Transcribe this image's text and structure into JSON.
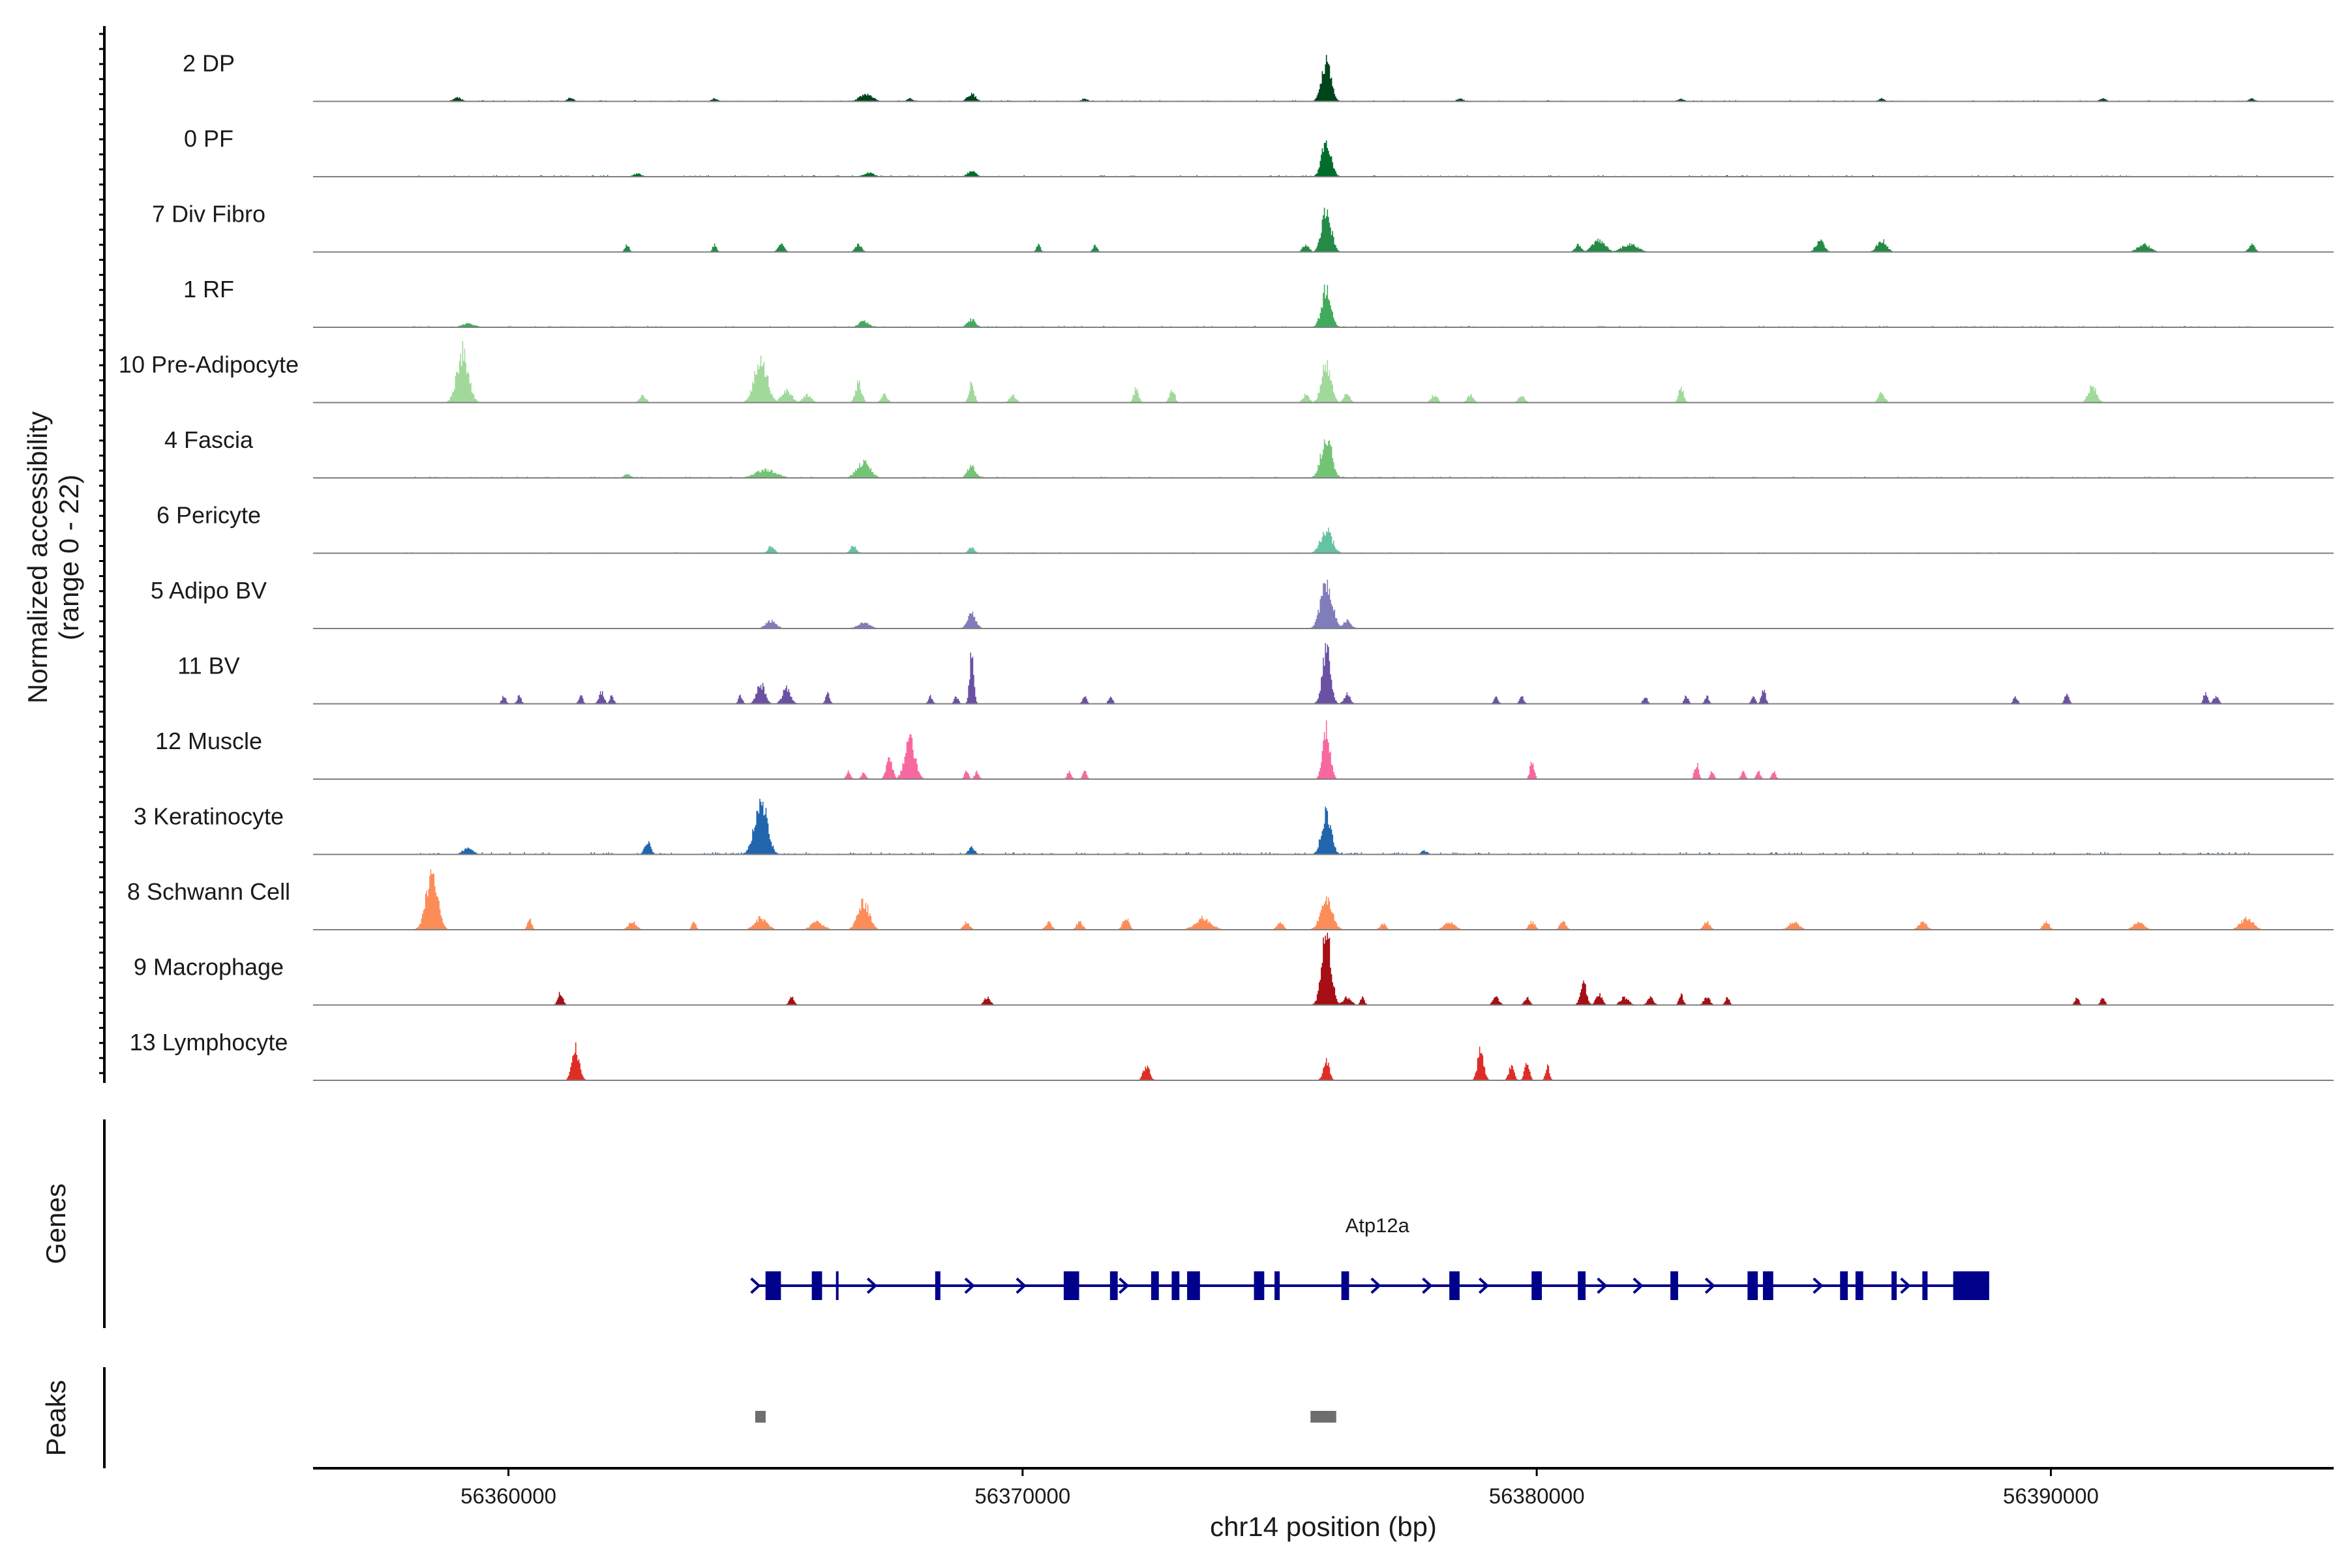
{
  "chart_data": {
    "type": "coverage-track",
    "ylabel_line1": "Normalized accessibility",
    "ylabel_line2": "(range 0 - 22)",
    "y_range": [
      0,
      22
    ],
    "xlabel": "chr14 position (bp)",
    "x_range": [
      56356200,
      56395500
    ],
    "x_ticks": [
      56360000,
      56370000,
      56380000,
      56390000
    ],
    "x_tick_labels": [
      "56360000",
      "56370000",
      "56380000",
      "56390000"
    ],
    "tracks": [
      {
        "name": "2 DP",
        "color": "#00441b",
        "peaks": [
          [
            56375900,
            20,
            90
          ],
          [
            56366950,
            4,
            120
          ],
          [
            56369000,
            4,
            80
          ],
          [
            56359000,
            2,
            80
          ],
          [
            56361200,
            2,
            60
          ],
          [
            56364000,
            1.5,
            60
          ],
          [
            56367800,
            1.5,
            60
          ],
          [
            56371200,
            1.5,
            60
          ],
          [
            56378500,
            1.5,
            60
          ],
          [
            56382800,
            1.5,
            60
          ],
          [
            56386700,
            1.5,
            60
          ],
          [
            56391000,
            1.5,
            60
          ],
          [
            56393900,
            1.5,
            60
          ]
        ],
        "noise": 0.6,
        "noise_from": 56359000,
        "noise_to": 56394000
      },
      {
        "name": "0 PF",
        "color": "#006d2c",
        "peaks": [
          [
            56375900,
            18,
            90
          ],
          [
            56369000,
            3,
            80
          ],
          [
            56367000,
            2,
            100
          ],
          [
            56362500,
            1.5,
            80
          ]
        ],
        "noise": 0.8,
        "noise_from": 56358000,
        "noise_to": 56394000
      },
      {
        "name": "7 Div Fibro",
        "color": "#238b45",
        "peaks": [
          [
            56375900,
            22,
            90
          ],
          [
            56362300,
            4,
            40
          ],
          [
            56364000,
            4,
            40
          ],
          [
            56366800,
            4,
            60
          ],
          [
            56370300,
            4,
            40
          ],
          [
            56371400,
            4,
            40
          ],
          [
            56375500,
            4,
            60
          ],
          [
            56381200,
            6,
            120
          ],
          [
            56381800,
            4,
            150
          ],
          [
            56385500,
            6,
            80
          ],
          [
            56386700,
            6,
            90
          ],
          [
            56391800,
            4,
            120
          ],
          [
            56393900,
            4,
            60
          ],
          [
            56380800,
            4,
            60
          ],
          [
            56365300,
            4,
            60
          ]
        ],
        "noise": 0,
        "noise_from": 56362000,
        "noise_to": 56394000
      },
      {
        "name": "1 RF",
        "color": "#41ab5d",
        "peaks": [
          [
            56375900,
            20,
            90
          ],
          [
            56369000,
            4,
            80
          ],
          [
            56366900,
            3,
            100
          ],
          [
            56359200,
            2,
            120
          ]
        ],
        "noise": 0.8,
        "noise_from": 56358000,
        "noise_to": 56394000
      },
      {
        "name": "10 Pre-Adipocyte",
        "color": "#a1d99b",
        "peaks": [
          [
            56359100,
            26,
            110
          ],
          [
            56364900,
            22,
            120
          ],
          [
            56365400,
            6,
            100
          ],
          [
            56366800,
            10,
            60
          ],
          [
            56369000,
            10,
            50
          ],
          [
            56372200,
            7,
            50
          ],
          [
            56372900,
            7,
            50
          ],
          [
            56375900,
            20,
            90
          ],
          [
            56376300,
            5,
            60
          ],
          [
            56378000,
            4,
            60
          ],
          [
            56378700,
            4,
            60
          ],
          [
            56382800,
            8,
            50
          ],
          [
            56386700,
            5,
            60
          ],
          [
            56390800,
            9,
            80
          ],
          [
            56362600,
            4,
            60
          ],
          [
            56365800,
            4,
            80
          ],
          [
            56367300,
            4,
            60
          ],
          [
            56375500,
            4,
            60
          ],
          [
            56379700,
            4,
            60
          ],
          [
            56369800,
            4,
            60
          ]
        ],
        "noise": 0,
        "noise_from": 56359000,
        "noise_to": 56391000
      },
      {
        "name": "4 Fascia",
        "color": "#74c476",
        "peaks": [
          [
            56375900,
            22,
            100
          ],
          [
            56366900,
            8,
            130
          ],
          [
            56369000,
            6,
            80
          ],
          [
            56365000,
            4,
            200
          ],
          [
            56362300,
            2,
            60
          ]
        ],
        "noise": 0.8,
        "noise_from": 56358000,
        "noise_to": 56394000
      },
      {
        "name": "6 Pericyte",
        "color": "#66c2a4",
        "peaks": [
          [
            56375900,
            12,
            110
          ],
          [
            56365100,
            4,
            60
          ],
          [
            56366700,
            4,
            60
          ],
          [
            56369000,
            3,
            60
          ]
        ],
        "noise": 0.5,
        "noise_from": 56358000,
        "noise_to": 56394000
      },
      {
        "name": "5 Adipo BV",
        "color": "#807dba",
        "peaks": [
          [
            56375900,
            24,
            110
          ],
          [
            56369000,
            8,
            80
          ],
          [
            56365100,
            4,
            100
          ],
          [
            56366900,
            3,
            120
          ],
          [
            56376300,
            4,
            80
          ]
        ],
        "noise": 0,
        "noise_from": 56358500,
        "noise_to": 56393500
      },
      {
        "name": "11 BV",
        "color": "#6a51a3",
        "peaks": [
          [
            56375900,
            28,
            80
          ],
          [
            56369000,
            26,
            40
          ],
          [
            56364900,
            10,
            80
          ],
          [
            56365400,
            8,
            80
          ],
          [
            56359900,
            4,
            40
          ],
          [
            56360200,
            4,
            40
          ],
          [
            56361400,
            4,
            40
          ],
          [
            56361800,
            6,
            50
          ],
          [
            56362000,
            4,
            40
          ],
          [
            56364500,
            4,
            40
          ],
          [
            56366200,
            6,
            40
          ],
          [
            56368200,
            4,
            40
          ],
          [
            56368700,
            4,
            40
          ],
          [
            56371200,
            4,
            40
          ],
          [
            56371700,
            4,
            40
          ],
          [
            56376300,
            5,
            60
          ],
          [
            56379200,
            4,
            40
          ],
          [
            56379700,
            4,
            40
          ],
          [
            56382100,
            4,
            40
          ],
          [
            56382900,
            4,
            40
          ],
          [
            56383300,
            4,
            40
          ],
          [
            56384400,
            8,
            40
          ],
          [
            56384200,
            4,
            40
          ],
          [
            56389300,
            4,
            40
          ],
          [
            56390300,
            6,
            40
          ],
          [
            56393200,
            4,
            50
          ],
          [
            56393000,
            6,
            40
          ]
        ],
        "noise": 0,
        "noise_from": 56358500,
        "noise_to": 56393500
      },
      {
        "name": "12 Muscle",
        "color": "#f768a1",
        "peaks": [
          [
            56375900,
            26,
            70
          ],
          [
            56367800,
            20,
            100
          ],
          [
            56367400,
            10,
            60
          ],
          [
            56366600,
            4,
            40
          ],
          [
            56366900,
            4,
            40
          ],
          [
            56367900,
            6,
            60
          ],
          [
            56368900,
            4,
            40
          ],
          [
            56369100,
            4,
            40
          ],
          [
            56370900,
            4,
            40
          ],
          [
            56371200,
            4,
            40
          ],
          [
            56379900,
            10,
            40
          ],
          [
            56383100,
            8,
            40
          ],
          [
            56383400,
            4,
            40
          ],
          [
            56384000,
            4,
            40
          ],
          [
            56384300,
            4,
            40
          ],
          [
            56384600,
            4,
            40
          ]
        ],
        "noise": 0,
        "noise_from": 56366000,
        "noise_to": 56385000
      },
      {
        "name": "3 Keratinocyte",
        "color": "#2166ac",
        "peaks": [
          [
            56364900,
            28,
            120
          ],
          [
            56375900,
            22,
            90
          ],
          [
            56362700,
            6,
            60
          ],
          [
            56369000,
            4,
            60
          ],
          [
            56359200,
            3,
            100
          ],
          [
            56377800,
            2,
            60
          ]
        ],
        "noise": 1.2,
        "noise_from": 56358000,
        "noise_to": 56394000
      },
      {
        "name": "8 Schwann Cell",
        "color": "#fc8d59",
        "peaks": [
          [
            56358500,
            28,
            110
          ],
          [
            56360400,
            6,
            40
          ],
          [
            56362400,
            4,
            80
          ],
          [
            56363600,
            4,
            40
          ],
          [
            56364900,
            6,
            120
          ],
          [
            56366000,
            4,
            120
          ],
          [
            56366900,
            14,
            110
          ],
          [
            56368900,
            4,
            60
          ],
          [
            56370500,
            4,
            60
          ],
          [
            56371100,
            4,
            60
          ],
          [
            56372000,
            6,
            60
          ],
          [
            56373500,
            6,
            150
          ],
          [
            56375000,
            4,
            60
          ],
          [
            56375900,
            16,
            110
          ],
          [
            56377000,
            3,
            60
          ],
          [
            56378300,
            4,
            100
          ],
          [
            56379900,
            4,
            60
          ],
          [
            56380500,
            4,
            60
          ],
          [
            56383300,
            4,
            60
          ],
          [
            56385000,
            4,
            100
          ],
          [
            56387500,
            4,
            80
          ],
          [
            56389900,
            4,
            60
          ],
          [
            56391700,
            4,
            100
          ],
          [
            56393800,
            6,
            120
          ]
        ],
        "noise": 0,
        "noise_from": 56358000,
        "noise_to": 56394000
      },
      {
        "name": "9 Macrophage",
        "color": "#a50f15",
        "peaks": [
          [
            56375900,
            36,
            90
          ],
          [
            56376300,
            4,
            80
          ],
          [
            56376600,
            4,
            40
          ],
          [
            56361000,
            6,
            50
          ],
          [
            56365500,
            4,
            50
          ],
          [
            56369300,
            4,
            60
          ],
          [
            56379200,
            4,
            60
          ],
          [
            56379800,
            4,
            50
          ],
          [
            56380900,
            12,
            60
          ],
          [
            56381200,
            6,
            60
          ],
          [
            56381700,
            4,
            80
          ],
          [
            56382200,
            4,
            60
          ],
          [
            56382800,
            6,
            40
          ],
          [
            56383300,
            4,
            60
          ],
          [
            56383700,
            4,
            40
          ],
          [
            56390500,
            4,
            40
          ],
          [
            56391000,
            4,
            40
          ]
        ],
        "noise": 0,
        "noise_from": 56361000,
        "noise_to": 56391000
      },
      {
        "name": "13 Lymphocyte",
        "color": "#de2d26",
        "peaks": [
          [
            56361300,
            16,
            70
          ],
          [
            56372400,
            8,
            60
          ],
          [
            56375900,
            10,
            60
          ],
          [
            56378900,
            16,
            60
          ],
          [
            56379500,
            8,
            50
          ],
          [
            56379800,
            8,
            50
          ],
          [
            56380200,
            8,
            40
          ]
        ],
        "noise": 0,
        "noise_from": 56361000,
        "noise_to": 56381000
      }
    ],
    "genes_label": "Genes",
    "gene": {
      "name": "Atp12a",
      "start": 56365000,
      "end": 56388800,
      "strand": "+",
      "color": "#00008b",
      "exons": [
        [
          56365000,
          56365300
        ],
        [
          56365900,
          56366100
        ],
        [
          56368300,
          56368350
        ],
        [
          56370800,
          56371100
        ],
        [
          56371700,
          56371850
        ],
        [
          56372500,
          56372650
        ],
        [
          56372900,
          56373050
        ],
        [
          56373200,
          56373450
        ],
        [
          56374500,
          56374700
        ],
        [
          56374900,
          56375000
        ],
        [
          56376200,
          56376350
        ],
        [
          56378300,
          56378500
        ],
        [
          56379900,
          56380100
        ],
        [
          56380800,
          56380950
        ],
        [
          56382600,
          56382750
        ],
        [
          56384100,
          56384300
        ],
        [
          56384400,
          56384600
        ],
        [
          56385900,
          56386050
        ],
        [
          56386200,
          56386350
        ],
        [
          56386900,
          56387000
        ],
        [
          56387500,
          56387600
        ],
        [
          56388100,
          56388800
        ]
      ],
      "arrows": [
        56367100,
        56369000,
        56370000,
        56372000,
        56376900,
        56377900,
        56379000,
        56381300,
        56382000,
        56383400,
        56385500,
        56387200
      ]
    },
    "peaks_label": "Peaks",
    "peak_regions": [
      [
        56364800,
        56365000
      ],
      [
        56375600,
        56376100
      ]
    ],
    "peak_color": "#6e6e6e"
  }
}
